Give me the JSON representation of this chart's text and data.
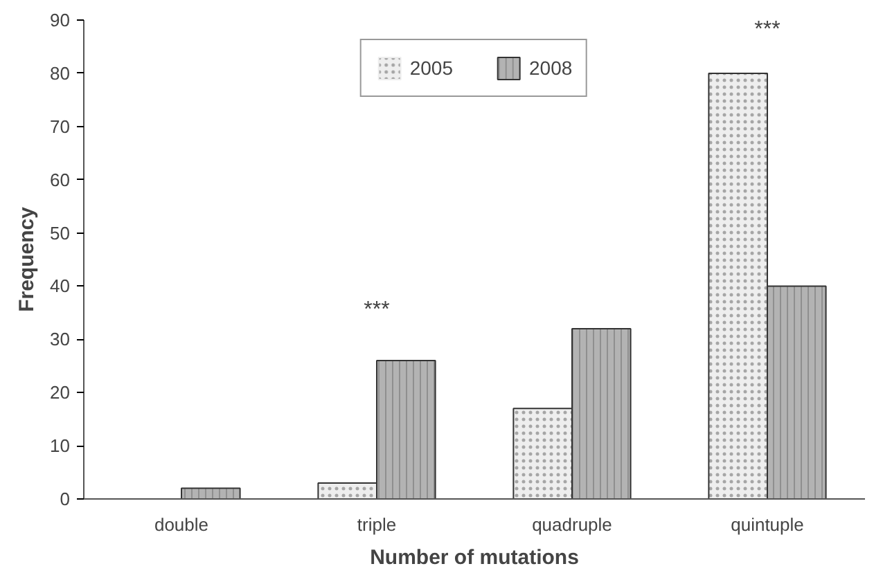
{
  "chart_data": {
    "type": "bar",
    "xlabel": "Number of mutations",
    "ylabel": "Frequency",
    "categories": [
      "double",
      "triple",
      "quadruple",
      "quintuple"
    ],
    "series": [
      {
        "name": "2005",
        "color": "#eeeeee",
        "values": [
          0,
          3,
          17,
          80
        ]
      },
      {
        "name": "2008",
        "color": "#b3b3b3",
        "values": [
          2,
          26,
          32,
          40
        ]
      }
    ],
    "ylim": [
      0,
      90
    ],
    "yticks": [
      0,
      10,
      20,
      30,
      40,
      50,
      60,
      70,
      80,
      90
    ],
    "grid": false,
    "legend": "top",
    "annotations": [
      "***",
      "***"
    ]
  }
}
